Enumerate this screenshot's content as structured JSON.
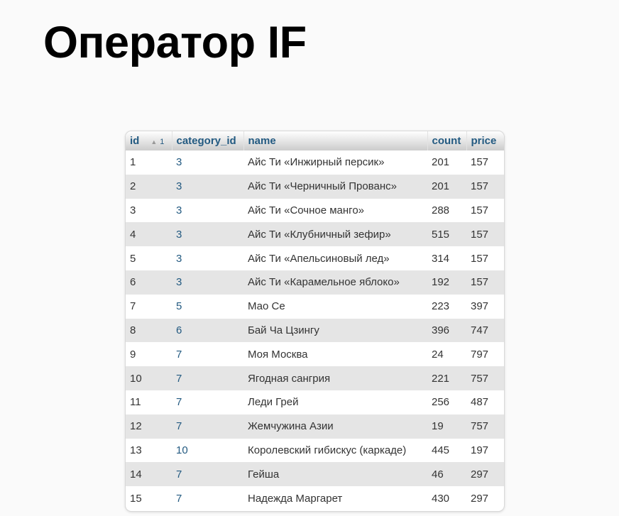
{
  "title": "Оператор IF",
  "table": {
    "columns": {
      "id": "id",
      "sort_arrow": "▲",
      "sort_order": "1",
      "category_id": "category_id",
      "name": "name",
      "count": "count",
      "price": "price"
    },
    "rows": [
      {
        "id": "1",
        "category_id": "3",
        "name": "Айс Ти «Инжирный персик»",
        "count": "201",
        "price": "157"
      },
      {
        "id": "2",
        "category_id": "3",
        "name": "Айс Ти «Черничный Прованс»",
        "count": "201",
        "price": "157"
      },
      {
        "id": "3",
        "category_id": "3",
        "name": "Айс Ти «Сочное манго»",
        "count": "288",
        "price": "157"
      },
      {
        "id": "4",
        "category_id": "3",
        "name": "Айс Ти «Клубничный зефир»",
        "count": "515",
        "price": "157"
      },
      {
        "id": "5",
        "category_id": "3",
        "name": "Айс Ти «Апельсиновый лед»",
        "count": "314",
        "price": "157"
      },
      {
        "id": "6",
        "category_id": "3",
        "name": "Айс Ти «Карамельное яблоко»",
        "count": "192",
        "price": "157"
      },
      {
        "id": "7",
        "category_id": "5",
        "name": "Мао Се",
        "count": "223",
        "price": "397"
      },
      {
        "id": "8",
        "category_id": "6",
        "name": "Бай Ча Цзингу",
        "count": "396",
        "price": "747"
      },
      {
        "id": "9",
        "category_id": "7",
        "name": "Моя Москва",
        "count": "24",
        "price": "797"
      },
      {
        "id": "10",
        "category_id": "7",
        "name": "Ягодная сангрия",
        "count": "221",
        "price": "757"
      },
      {
        "id": "11",
        "category_id": "7",
        "name": "Леди Грей",
        "count": "256",
        "price": "487"
      },
      {
        "id": "12",
        "category_id": "7",
        "name": "Жемчужина Азии",
        "count": "19",
        "price": "757"
      },
      {
        "id": "13",
        "category_id": "10",
        "name": "Королевский гибискус (каркаде)",
        "count": "445",
        "price": "197"
      },
      {
        "id": "14",
        "category_id": "7",
        "name": "Гейша",
        "count": "46",
        "price": "297"
      },
      {
        "id": "15",
        "category_id": "7",
        "name": "Надежда Маргарет",
        "count": "430",
        "price": "297"
      }
    ]
  }
}
